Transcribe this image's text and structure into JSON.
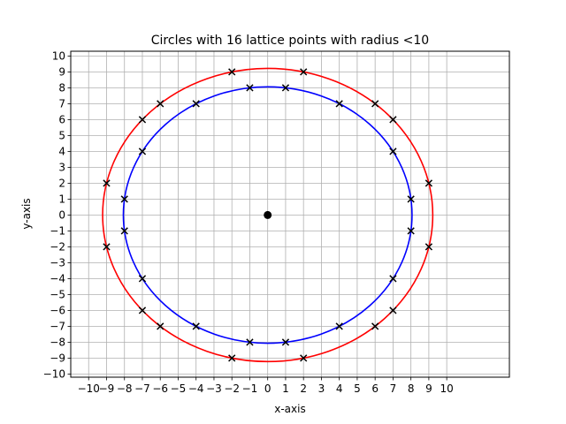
{
  "chart_data": {
    "type": "scatter",
    "title": "Circles with 16 lattice points with radius <10",
    "xlabel": "x-axis",
    "ylabel": "y-axis",
    "xlim": [
      -11.0,
      13.5
    ],
    "ylim": [
      -10.2,
      10.3
    ],
    "xticks": [
      -10,
      -9,
      -8,
      -7,
      -6,
      -5,
      -4,
      -3,
      -2,
      -1,
      0,
      1,
      2,
      3,
      4,
      5,
      6,
      7,
      8,
      9,
      10
    ],
    "yticks": [
      -10,
      -9,
      -8,
      -7,
      -6,
      -5,
      -4,
      -3,
      -2,
      -1,
      0,
      1,
      2,
      3,
      4,
      5,
      6,
      7,
      8,
      9,
      10
    ],
    "grid": true,
    "origin_marker": {
      "x": 0,
      "y": 0
    },
    "circles": [
      {
        "color": "#0000ff",
        "radius_squared": 65,
        "points": [
          [
            1,
            8
          ],
          [
            4,
            7
          ],
          [
            7,
            4
          ],
          [
            8,
            1
          ],
          [
            8,
            -1
          ],
          [
            7,
            -4
          ],
          [
            4,
            -7
          ],
          [
            1,
            -8
          ],
          [
            -1,
            -8
          ],
          [
            -4,
            -7
          ],
          [
            -7,
            -4
          ],
          [
            -8,
            -1
          ],
          [
            -8,
            1
          ],
          [
            -7,
            4
          ],
          [
            -4,
            7
          ],
          [
            -1,
            8
          ]
        ]
      },
      {
        "color": "#ff0000",
        "radius_squared": 85,
        "points": [
          [
            2,
            9
          ],
          [
            6,
            7
          ],
          [
            7,
            6
          ],
          [
            9,
            2
          ],
          [
            9,
            -2
          ],
          [
            7,
            -6
          ],
          [
            6,
            -7
          ],
          [
            2,
            -9
          ],
          [
            -2,
            -9
          ],
          [
            -6,
            -7
          ],
          [
            -7,
            -6
          ],
          [
            -9,
            -2
          ],
          [
            -9,
            2
          ],
          [
            -7,
            6
          ],
          [
            -6,
            7
          ],
          [
            -2,
            9
          ]
        ]
      }
    ]
  }
}
